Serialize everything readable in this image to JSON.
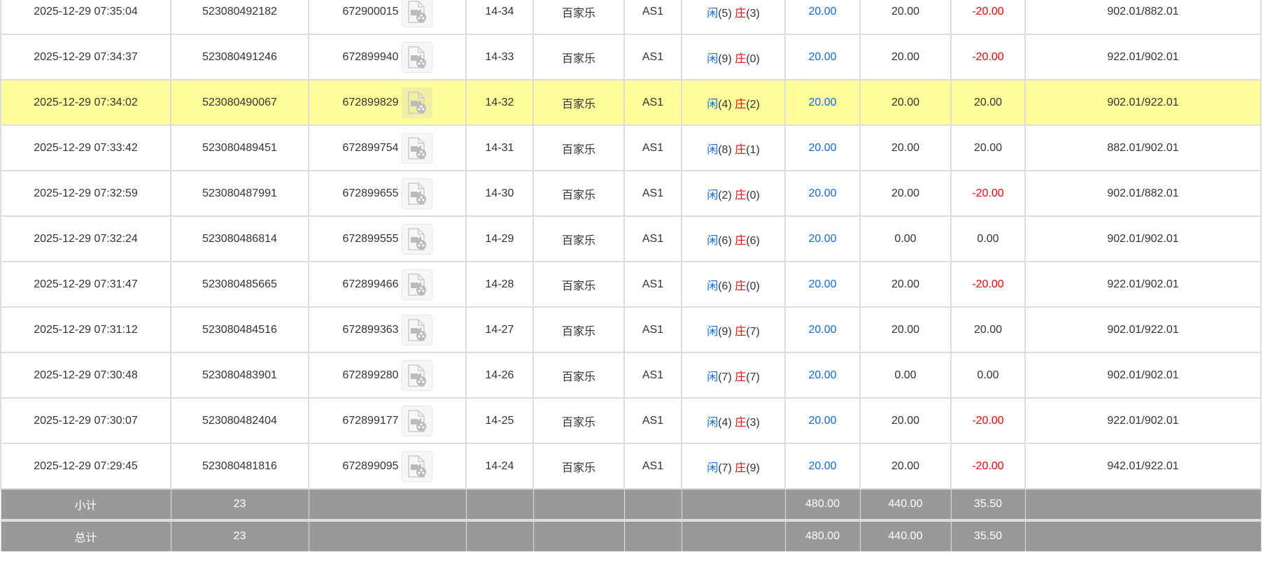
{
  "colors": {
    "player": "#0a6cf5",
    "banker": "#ff0000",
    "highlight": "#fefe9a",
    "summary_bg": "#999999"
  },
  "labels": {
    "player": "闲",
    "banker": "庄"
  },
  "rows": [
    {
      "time": "2025-12-29 07:35:04",
      "bet_id": "523080492182",
      "round_id": "672900015",
      "shoe": "14-34",
      "game": "百家乐",
      "table": "AS1",
      "player": "5",
      "banker": "3",
      "bet": "20.00",
      "valid": "20.00",
      "win": "-20.00",
      "balance": "902.01/882.01",
      "highlight": false
    },
    {
      "time": "2025-12-29 07:34:37",
      "bet_id": "523080491246",
      "round_id": "672899940",
      "shoe": "14-33",
      "game": "百家乐",
      "table": "AS1",
      "player": "9",
      "banker": "0",
      "bet": "20.00",
      "valid": "20.00",
      "win": "-20.00",
      "balance": "922.01/902.01",
      "highlight": false
    },
    {
      "time": "2025-12-29 07:34:02",
      "bet_id": "523080490067",
      "round_id": "672899829",
      "shoe": "14-32",
      "game": "百家乐",
      "table": "AS1",
      "player": "4",
      "banker": "2",
      "bet": "20.00",
      "valid": "20.00",
      "win": "20.00",
      "balance": "902.01/922.01",
      "highlight": true
    },
    {
      "time": "2025-12-29 07:33:42",
      "bet_id": "523080489451",
      "round_id": "672899754",
      "shoe": "14-31",
      "game": "百家乐",
      "table": "AS1",
      "player": "8",
      "banker": "1",
      "bet": "20.00",
      "valid": "20.00",
      "win": "20.00",
      "balance": "882.01/902.01",
      "highlight": false
    },
    {
      "time": "2025-12-29 07:32:59",
      "bet_id": "523080487991",
      "round_id": "672899655",
      "shoe": "14-30",
      "game": "百家乐",
      "table": "AS1",
      "player": "2",
      "banker": "0",
      "bet": "20.00",
      "valid": "20.00",
      "win": "-20.00",
      "balance": "902.01/882.01",
      "highlight": false
    },
    {
      "time": "2025-12-29 07:32:24",
      "bet_id": "523080486814",
      "round_id": "672899555",
      "shoe": "14-29",
      "game": "百家乐",
      "table": "AS1",
      "player": "6",
      "banker": "6",
      "bet": "20.00",
      "valid": "0.00",
      "win": "0.00",
      "balance": "902.01/902.01",
      "highlight": false
    },
    {
      "time": "2025-12-29 07:31:47",
      "bet_id": "523080485665",
      "round_id": "672899466",
      "shoe": "14-28",
      "game": "百家乐",
      "table": "AS1",
      "player": "6",
      "banker": "0",
      "bet": "20.00",
      "valid": "20.00",
      "win": "-20.00",
      "balance": "922.01/902.01",
      "highlight": false
    },
    {
      "time": "2025-12-29 07:31:12",
      "bet_id": "523080484516",
      "round_id": "672899363",
      "shoe": "14-27",
      "game": "百家乐",
      "table": "AS1",
      "player": "9",
      "banker": "7",
      "bet": "20.00",
      "valid": "20.00",
      "win": "20.00",
      "balance": "902.01/922.01",
      "highlight": false
    },
    {
      "time": "2025-12-29 07:30:48",
      "bet_id": "523080483901",
      "round_id": "672899280",
      "shoe": "14-26",
      "game": "百家乐",
      "table": "AS1",
      "player": "7",
      "banker": "7",
      "bet": "20.00",
      "valid": "0.00",
      "win": "0.00",
      "balance": "902.01/902.01",
      "highlight": false
    },
    {
      "time": "2025-12-29 07:30:07",
      "bet_id": "523080482404",
      "round_id": "672899177",
      "shoe": "14-25",
      "game": "百家乐",
      "table": "AS1",
      "player": "4",
      "banker": "3",
      "bet": "20.00",
      "valid": "20.00",
      "win": "-20.00",
      "balance": "922.01/902.01",
      "highlight": false
    },
    {
      "time": "2025-12-29 07:29:45",
      "bet_id": "523080481816",
      "round_id": "672899095",
      "shoe": "14-24",
      "game": "百家乐",
      "table": "AS1",
      "player": "7",
      "banker": "9",
      "bet": "20.00",
      "valid": "20.00",
      "win": "-20.00",
      "balance": "942.01/922.01",
      "highlight": false
    }
  ],
  "summary": [
    {
      "label": "小计",
      "count": "23",
      "bet": "480.00",
      "valid": "440.00",
      "win": "35.50"
    },
    {
      "label": "总计",
      "count": "23",
      "bet": "480.00",
      "valid": "440.00",
      "win": "35.50"
    }
  ]
}
